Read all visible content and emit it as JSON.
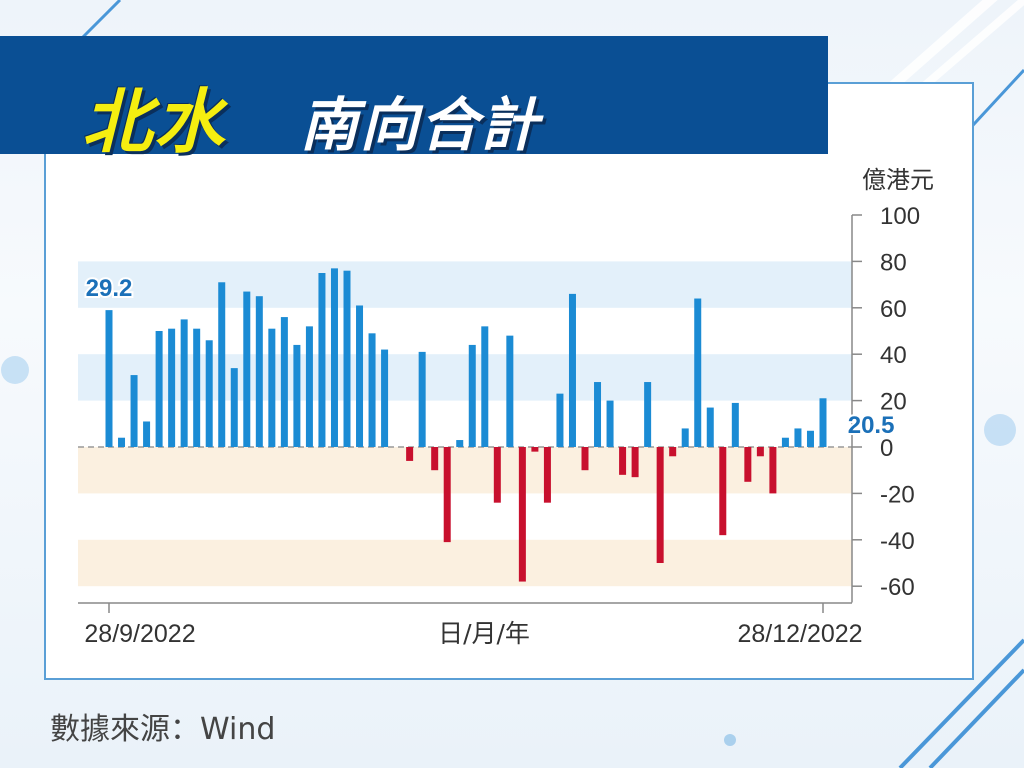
{
  "title": {
    "main": "北水",
    "sub": "南向合計"
  },
  "source": "數據來源：Wind",
  "chart_data": {
    "type": "bar",
    "unit_label": "億港元",
    "xlabel": "日/月/年",
    "x_tick_labels": [
      "28/9/2022",
      "28/12/2022"
    ],
    "ylim": [
      -60,
      100
    ],
    "y_ticks": [
      100,
      80,
      60,
      40,
      20,
      0,
      -20,
      -40,
      -60
    ],
    "annotations": [
      {
        "index": 0,
        "label": "29.2"
      },
      {
        "index": 61,
        "label": "20.5"
      }
    ],
    "colors": {
      "positive": "#1b8bd4",
      "negative": "#c8102e",
      "band_blue": "#e3f0fa",
      "band_orange": "#fbf0e0"
    },
    "values": [
      59,
      4,
      31,
      11,
      50,
      51,
      55,
      51,
      46,
      71,
      34,
      67,
      65,
      51,
      56,
      44,
      52,
      75,
      77,
      76,
      61,
      49,
      42,
      0,
      -6,
      41,
      -10,
      -41,
      3,
      44,
      52,
      -24,
      48,
      -58,
      -2,
      -24,
      23,
      66,
      -10,
      28,
      20,
      -12,
      -13,
      28,
      -50,
      -4,
      8,
      64,
      17,
      -38,
      19,
      -15,
      -4,
      -20,
      4,
      8,
      7,
      21
    ]
  }
}
